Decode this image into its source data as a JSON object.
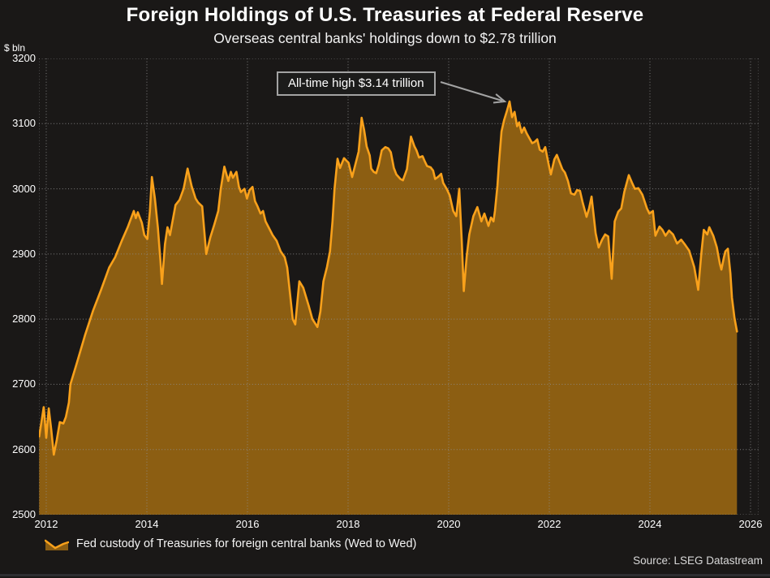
{
  "header": {
    "title": "Foreign Holdings of U.S. Treasuries at Federal Reserve",
    "subtitle": "Overseas central banks' holdings down to $2.78 trillion"
  },
  "axes": {
    "y_unit_label": "$ bln"
  },
  "legend": {
    "label": "Fed custody of Treasuries for foreign central banks (Wed to Wed)"
  },
  "footer": {
    "source": "Source: LSEG Datastream"
  },
  "chart_data": {
    "type": "area",
    "title": "Foreign Holdings of U.S. Treasuries at Federal Reserve",
    "subtitle": "Overseas central banks' holdings down to $2.78 trillion",
    "ylabel": "$ bln",
    "xlabel": "",
    "grid": "dotted",
    "legend_position": "bottom-left",
    "xlim": [
      2011.855,
      2026.161
    ],
    "ylim": [
      2500,
      3200
    ],
    "x_ticks": [
      2012,
      2014,
      2016,
      2018,
      2020,
      2022,
      2024,
      2026
    ],
    "y_ticks": [
      2500,
      2600,
      2700,
      2800,
      2900,
      3000,
      3100,
      3200
    ],
    "annotation": {
      "text": "All-time high $3.14 trillion",
      "points_to": [
        2021.21,
        3134
      ]
    },
    "colors": {
      "line": "#F9A11B",
      "fill": "#8C5E12",
      "background": "#1A1817",
      "grid": "#8F8F8F",
      "text": "#FFFFFF",
      "arrow": "#A3A3A3"
    },
    "series": [
      {
        "name": "Fed custody of Treasuries for foreign central banks (Wed to Wed)",
        "points": [
          [
            2011.86,
            2620
          ],
          [
            2011.9,
            2640
          ],
          [
            2011.95,
            2665
          ],
          [
            2012.0,
            2618
          ],
          [
            2012.05,
            2663
          ],
          [
            2012.1,
            2630
          ],
          [
            2012.15,
            2592
          ],
          [
            2012.21,
            2615
          ],
          [
            2012.27,
            2642
          ],
          [
            2012.34,
            2640
          ],
          [
            2012.39,
            2650
          ],
          [
            2012.45,
            2672
          ],
          [
            2012.48,
            2700
          ],
          [
            2012.61,
            2733
          ],
          [
            2012.77,
            2775
          ],
          [
            2012.93,
            2813
          ],
          [
            2013.09,
            2845
          ],
          [
            2013.25,
            2879
          ],
          [
            2013.37,
            2895
          ],
          [
            2013.5,
            2920
          ],
          [
            2013.62,
            2941
          ],
          [
            2013.74,
            2966
          ],
          [
            2013.78,
            2955
          ],
          [
            2013.82,
            2964
          ],
          [
            2013.9,
            2948
          ],
          [
            2013.95,
            2929
          ],
          [
            2014.01,
            2923
          ],
          [
            2014.06,
            2965
          ],
          [
            2014.1,
            3018
          ],
          [
            2014.16,
            2985
          ],
          [
            2014.22,
            2940
          ],
          [
            2014.27,
            2890
          ],
          [
            2014.3,
            2854
          ],
          [
            2014.36,
            2915
          ],
          [
            2014.41,
            2941
          ],
          [
            2014.46,
            2929
          ],
          [
            2014.57,
            2975
          ],
          [
            2014.65,
            2983
          ],
          [
            2014.73,
            3000
          ],
          [
            2014.81,
            3031
          ],
          [
            2014.89,
            3004
          ],
          [
            2014.97,
            2985
          ],
          [
            2015.02,
            2979
          ],
          [
            2015.1,
            2973
          ],
          [
            2015.18,
            2900
          ],
          [
            2015.26,
            2925
          ],
          [
            2015.34,
            2945
          ],
          [
            2015.42,
            2966
          ],
          [
            2015.47,
            3000
          ],
          [
            2015.54,
            3034
          ],
          [
            2015.62,
            3012
          ],
          [
            2015.67,
            3026
          ],
          [
            2015.71,
            3017
          ],
          [
            2015.78,
            3026
          ],
          [
            2015.83,
            3003
          ],
          [
            2015.87,
            2995
          ],
          [
            2015.94,
            3000
          ],
          [
            2015.99,
            2985
          ],
          [
            2016.04,
            2998
          ],
          [
            2016.1,
            3003
          ],
          [
            2016.15,
            2981
          ],
          [
            2016.2,
            2973
          ],
          [
            2016.26,
            2962
          ],
          [
            2016.31,
            2966
          ],
          [
            2016.36,
            2950
          ],
          [
            2016.42,
            2941
          ],
          [
            2016.5,
            2929
          ],
          [
            2016.58,
            2920
          ],
          [
            2016.66,
            2904
          ],
          [
            2016.74,
            2895
          ],
          [
            2016.79,
            2879
          ],
          [
            2016.9,
            2800
          ],
          [
            2016.95,
            2792
          ],
          [
            2017.03,
            2858
          ],
          [
            2017.11,
            2848
          ],
          [
            2017.22,
            2820
          ],
          [
            2017.29,
            2800
          ],
          [
            2017.39,
            2788
          ],
          [
            2017.45,
            2812
          ],
          [
            2017.51,
            2858
          ],
          [
            2017.58,
            2880
          ],
          [
            2017.64,
            2904
          ],
          [
            2017.69,
            2950
          ],
          [
            2017.73,
            3000
          ],
          [
            2017.79,
            3046
          ],
          [
            2017.84,
            3032
          ],
          [
            2017.92,
            3047
          ],
          [
            2017.97,
            3043
          ],
          [
            2018.01,
            3040
          ],
          [
            2018.08,
            3018
          ],
          [
            2018.16,
            3042
          ],
          [
            2018.21,
            3057
          ],
          [
            2018.27,
            3109
          ],
          [
            2018.32,
            3090
          ],
          [
            2018.37,
            3065
          ],
          [
            2018.43,
            3051
          ],
          [
            2018.46,
            3031
          ],
          [
            2018.51,
            3026
          ],
          [
            2018.56,
            3024
          ],
          [
            2018.61,
            3037
          ],
          [
            2018.67,
            3059
          ],
          [
            2018.74,
            3064
          ],
          [
            2018.8,
            3062
          ],
          [
            2018.85,
            3056
          ],
          [
            2018.91,
            3032
          ],
          [
            2018.96,
            3022
          ],
          [
            2019.04,
            3015
          ],
          [
            2019.09,
            3013
          ],
          [
            2019.17,
            3030
          ],
          [
            2019.25,
            3080
          ],
          [
            2019.32,
            3065
          ],
          [
            2019.36,
            3059
          ],
          [
            2019.41,
            3048
          ],
          [
            2019.48,
            3050
          ],
          [
            2019.52,
            3043
          ],
          [
            2019.57,
            3035
          ],
          [
            2019.64,
            3033
          ],
          [
            2019.69,
            3028
          ],
          [
            2019.73,
            3015
          ],
          [
            2019.8,
            3019
          ],
          [
            2019.85,
            3023
          ],
          [
            2019.89,
            3009
          ],
          [
            2019.96,
            3000
          ],
          [
            2020.02,
            2990
          ],
          [
            2020.09,
            2966
          ],
          [
            2020.15,
            2958
          ],
          [
            2020.21,
            3000
          ],
          [
            2020.26,
            2920
          ],
          [
            2020.3,
            2843
          ],
          [
            2020.36,
            2898
          ],
          [
            2020.41,
            2930
          ],
          [
            2020.49,
            2958
          ],
          [
            2020.57,
            2972
          ],
          [
            2020.65,
            2950
          ],
          [
            2020.71,
            2962
          ],
          [
            2020.79,
            2943
          ],
          [
            2020.84,
            2956
          ],
          [
            2020.89,
            2950
          ],
          [
            2020.92,
            2966
          ],
          [
            2020.97,
            3005
          ],
          [
            2021.0,
            3040
          ],
          [
            2021.05,
            3088
          ],
          [
            2021.1,
            3105
          ],
          [
            2021.16,
            3120
          ],
          [
            2021.21,
            3134
          ],
          [
            2021.26,
            3110
          ],
          [
            2021.31,
            3118
          ],
          [
            2021.36,
            3096
          ],
          [
            2021.4,
            3102
          ],
          [
            2021.45,
            3086
          ],
          [
            2021.5,
            3094
          ],
          [
            2021.55,
            3085
          ],
          [
            2021.6,
            3078
          ],
          [
            2021.66,
            3070
          ],
          [
            2021.71,
            3072
          ],
          [
            2021.76,
            3076
          ],
          [
            2021.81,
            3060
          ],
          [
            2021.87,
            3057
          ],
          [
            2021.92,
            3064
          ],
          [
            2021.98,
            3040
          ],
          [
            2022.03,
            3022
          ],
          [
            2022.1,
            3045
          ],
          [
            2022.15,
            3052
          ],
          [
            2022.21,
            3040
          ],
          [
            2022.26,
            3030
          ],
          [
            2022.31,
            3025
          ],
          [
            2022.37,
            3012
          ],
          [
            2022.43,
            2993
          ],
          [
            2022.5,
            2991
          ],
          [
            2022.55,
            2998
          ],
          [
            2022.61,
            2997
          ],
          [
            2022.66,
            2980
          ],
          [
            2022.74,
            2957
          ],
          [
            2022.79,
            2970
          ],
          [
            2022.84,
            2988
          ],
          [
            2022.92,
            2932
          ],
          [
            2022.98,
            2910
          ],
          [
            2023.05,
            2922
          ],
          [
            2023.11,
            2930
          ],
          [
            2023.17,
            2927
          ],
          [
            2023.24,
            2862
          ],
          [
            2023.3,
            2950
          ],
          [
            2023.37,
            2965
          ],
          [
            2023.43,
            2970
          ],
          [
            2023.49,
            2995
          ],
          [
            2023.58,
            3021
          ],
          [
            2023.64,
            3010
          ],
          [
            2023.7,
            3000
          ],
          [
            2023.77,
            3001
          ],
          [
            2023.85,
            2991
          ],
          [
            2023.94,
            2970
          ],
          [
            2023.99,
            2962
          ],
          [
            2024.06,
            2966
          ],
          [
            2024.11,
            2928
          ],
          [
            2024.19,
            2942
          ],
          [
            2024.25,
            2937
          ],
          [
            2024.31,
            2928
          ],
          [
            2024.38,
            2936
          ],
          [
            2024.46,
            2930
          ],
          [
            2024.54,
            2916
          ],
          [
            2024.62,
            2922
          ],
          [
            2024.7,
            2914
          ],
          [
            2024.78,
            2905
          ],
          [
            2024.88,
            2880
          ],
          [
            2024.96,
            2845
          ],
          [
            2025.02,
            2900
          ],
          [
            2025.07,
            2937
          ],
          [
            2025.14,
            2930
          ],
          [
            2025.18,
            2941
          ],
          [
            2025.26,
            2928
          ],
          [
            2025.33,
            2910
          ],
          [
            2025.39,
            2885
          ],
          [
            2025.42,
            2876
          ],
          [
            2025.47,
            2895
          ],
          [
            2025.5,
            2904
          ],
          [
            2025.55,
            2908
          ],
          [
            2025.6,
            2870
          ],
          [
            2025.63,
            2833
          ],
          [
            2025.68,
            2802
          ],
          [
            2025.73,
            2781
          ]
        ]
      }
    ]
  }
}
